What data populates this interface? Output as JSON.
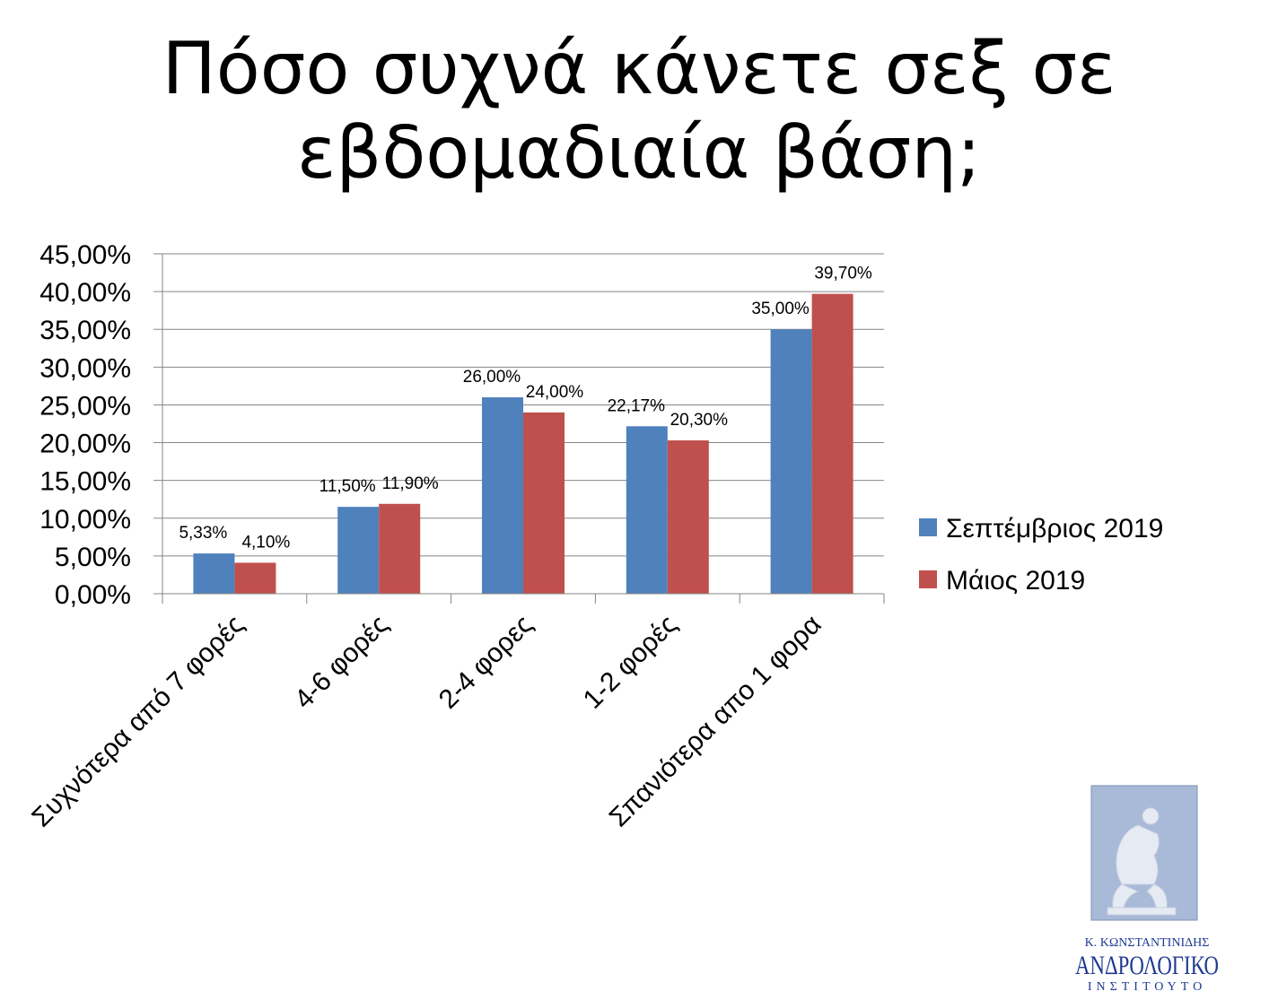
{
  "title_lines": [
    "Πόσο συχνά κάνετε σεξ σε",
    "εβδομαδιαία βάση;"
  ],
  "chart_data": {
    "type": "bar",
    "title": "Πόσο συχνά κάνετε σεξ σε εβδομαδιαία βάση;",
    "categories": [
      "Συχνότερα από 7 φορές",
      "4-6 φορές",
      "2-4 φορες",
      "1-2 φορές",
      "Σπανιότερα απο 1 φορα"
    ],
    "series": [
      {
        "name": "Σεπτέμβριος 2019",
        "color": "#4F81BD",
        "values": [
          5.33,
          11.5,
          26.0,
          22.17,
          35.0
        ],
        "labels": [
          "5,33%",
          "11,50%",
          "26,00%",
          "22,17%",
          "35,00%"
        ]
      },
      {
        "name": "Μάιος 2019",
        "color": "#C0504D",
        "values": [
          4.1,
          11.9,
          24.0,
          20.3,
          39.7
        ],
        "labels": [
          "4,10%",
          "11,90%",
          "24,00%",
          "20,30%",
          "39,70%"
        ]
      }
    ],
    "y_ticks": [
      "0,00%",
      "5,00%",
      "10,00%",
      "15,00%",
      "20,00%",
      "25,00%",
      "30,00%",
      "35,00%",
      "40,00%",
      "45,00%"
    ],
    "ylim": [
      0,
      45
    ],
    "xlabel": "",
    "ylabel": "",
    "grid": true,
    "legend_position": "right"
  },
  "logo": {
    "name_line": "Κ. ΚΩΝΣΤΑΝΤΙΝΙΔΗΣ",
    "main_line": "ΑΝΔΡΟΛΟΓΙΚΟ",
    "sub_line": "ΙΝΣΤΙΤΟΥΤΟ",
    "panel_color": "#A9B9D8",
    "text_color": "#1F3A93"
  }
}
